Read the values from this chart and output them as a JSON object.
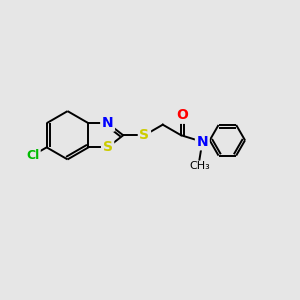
{
  "background_color": "#e6e6e6",
  "bond_color": "#000000",
  "atom_colors": {
    "S": "#cccc00",
    "N": "#0000ff",
    "O": "#ff0000",
    "Cl": "#00bb00",
    "C": "#000000"
  },
  "bond_width": 1.4,
  "font_size": 10,
  "fig_width": 3.0,
  "fig_height": 3.0,
  "dpi": 100
}
